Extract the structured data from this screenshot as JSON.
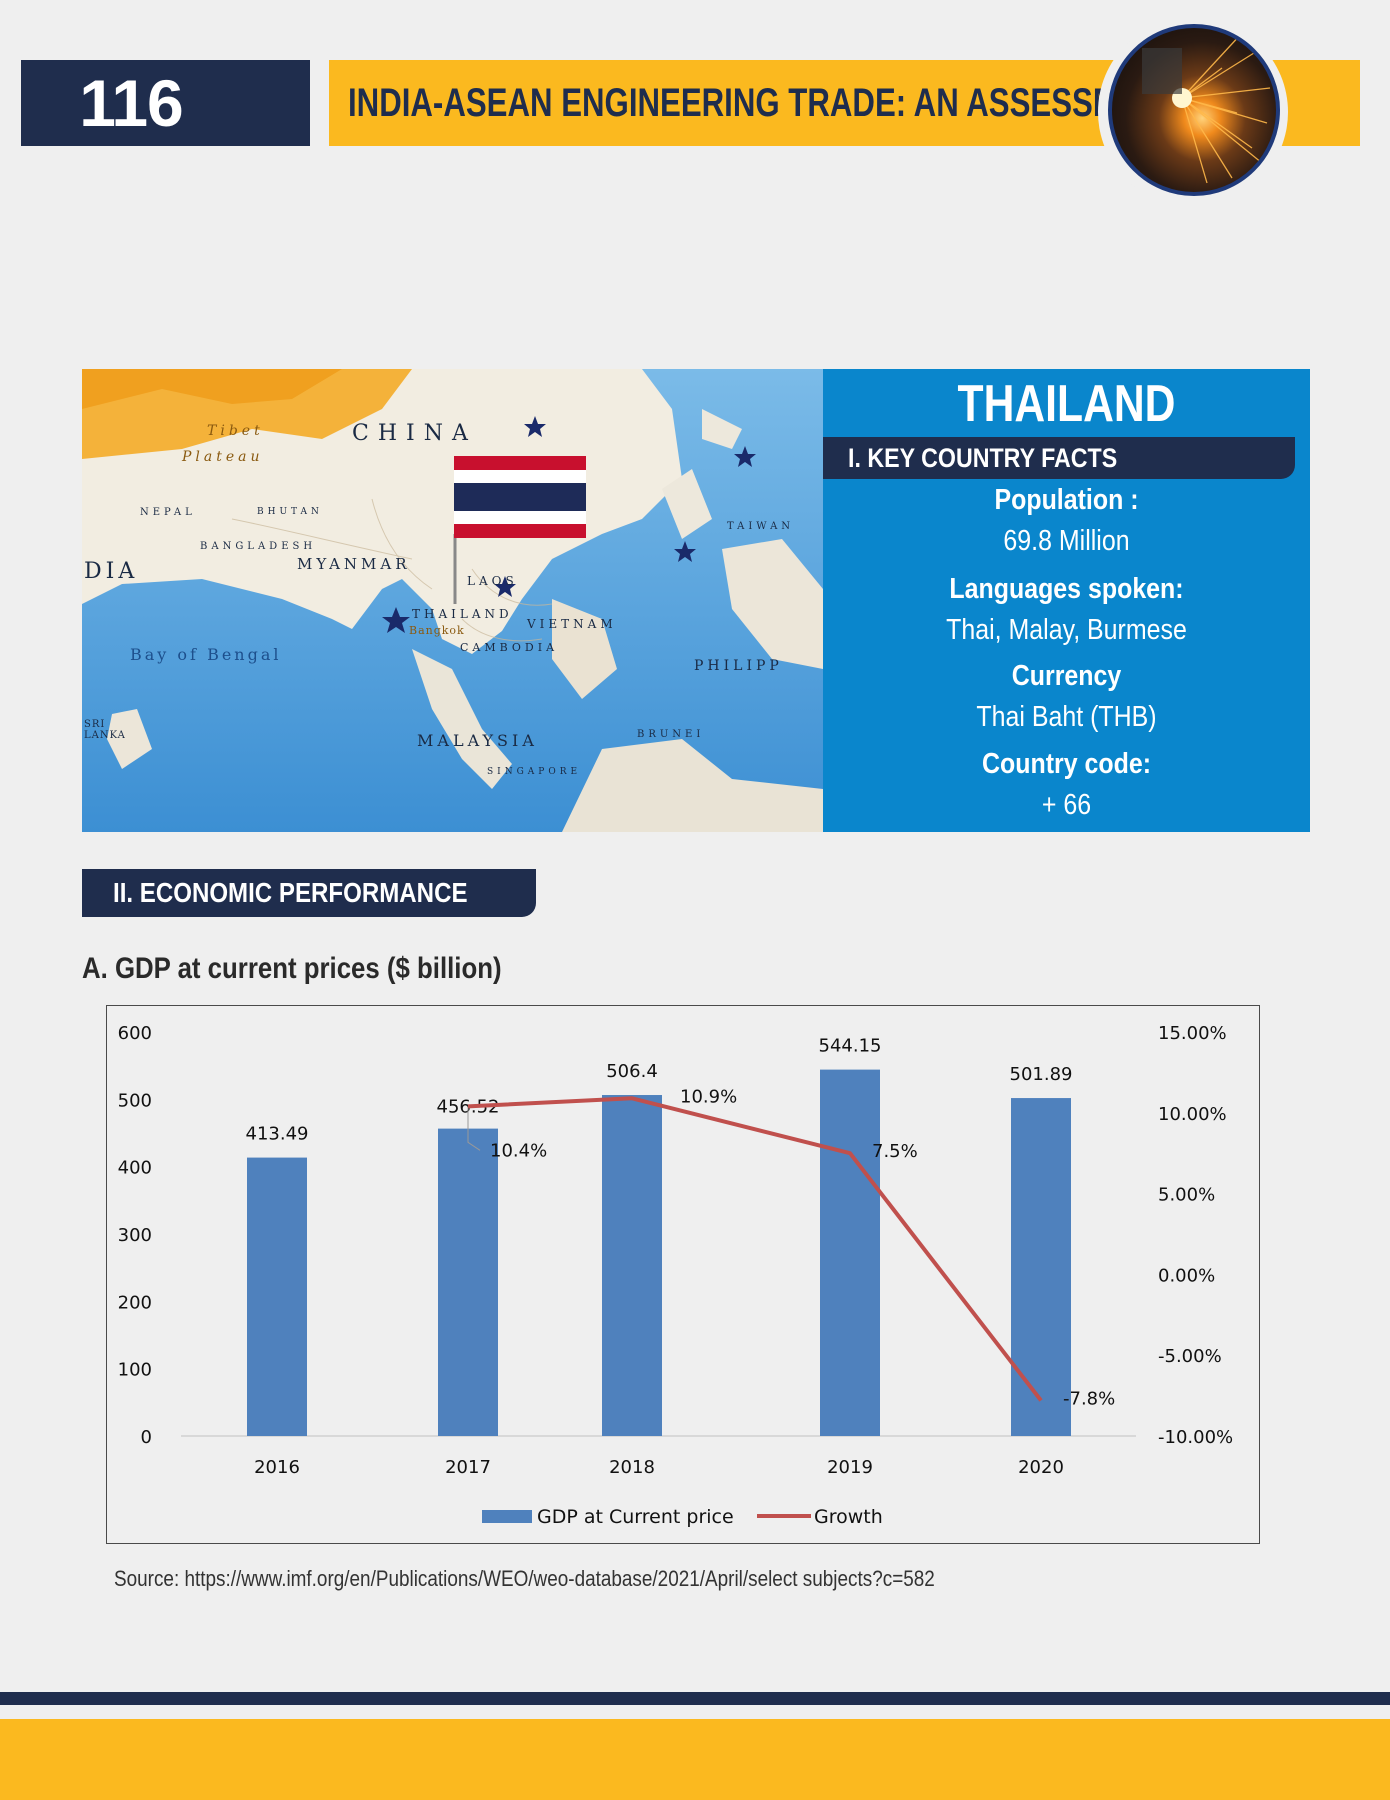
{
  "header": {
    "page_number": "116",
    "title": "INDIA-ASEAN ENGINEERING TRADE: AN ASSESSMENT",
    "photo_icon": "welding-sparks-photo"
  },
  "map": {
    "labels": {
      "tibet": "Tibet",
      "plateau": "Plateau",
      "china": "CHINA",
      "nepal": "NEPAL",
      "bhutan": "BHUTAN",
      "bangladesh": "BANGLADESH",
      "myanmar": "MYANMAR",
      "india": "DIA",
      "laos": "LAOS",
      "thailand": "THAILAND",
      "bangkok": "Bangkok",
      "vietnam": "VIETNAM",
      "cambodia": "CAMBODIA",
      "bay_of_bengal": "Bay of Bengal",
      "sri_lanka": "SRI LANKA",
      "taiwan": "TAIWAN",
      "philippines": "PHILIPP",
      "malaysia": "MALAYSIA",
      "brunei": "BRUNEI",
      "singapore": "SINGAPORE"
    }
  },
  "country": {
    "name": "THAILAND",
    "key_facts_heading": "I. KEY COUNTRY FACTS",
    "facts": [
      {
        "label": "Population :",
        "value": "69.8 Million"
      },
      {
        "label": "Languages spoken:",
        "value": "Thai, Malay, Burmese"
      },
      {
        "label": "Currency",
        "value": "Thai Baht (THB)"
      },
      {
        "label": "Country code:",
        "value": "+ 66"
      }
    ]
  },
  "economic": {
    "heading": "II. ECONOMIC PERFORMANCE",
    "gdp_heading": "A. GDP at current prices ($ billion)",
    "source": "Source: https://www.imf.org/en/Publications/WEO/weo-database/2021/April/select subjects?c=582"
  },
  "chart_data": {
    "type": "bar",
    "categories": [
      "2016",
      "2017",
      "2018",
      "2019",
      "2020"
    ],
    "series": [
      {
        "name": "GDP at Current price",
        "type": "bar",
        "axis": "left",
        "values": [
          413.49,
          456.52,
          506.4,
          544.15,
          501.89
        ],
        "labels": [
          "413.49",
          "456.52",
          "506.4",
          "544.15",
          "501.89"
        ],
        "color": "#4f81bd"
      },
      {
        "name": "Growth",
        "type": "line",
        "axis": "right",
        "values": [
          null,
          10.4,
          10.9,
          7.5,
          -7.8
        ],
        "labels": [
          null,
          "10.4%",
          "10.9%",
          "7.5%",
          "-7.8%"
        ],
        "color": "#c0504d"
      }
    ],
    "left_axis": {
      "ylim": [
        0,
        600
      ],
      "ticks": [
        "0",
        "100",
        "200",
        "300",
        "400",
        "500",
        "600"
      ]
    },
    "right_axis": {
      "ylim": [
        -10,
        15
      ],
      "ticks": [
        "-10.00%",
        "-5.00%",
        "0.00%",
        "5.00%",
        "10.00%",
        "15.00%"
      ]
    },
    "legend": "bottom",
    "grid": false
  }
}
